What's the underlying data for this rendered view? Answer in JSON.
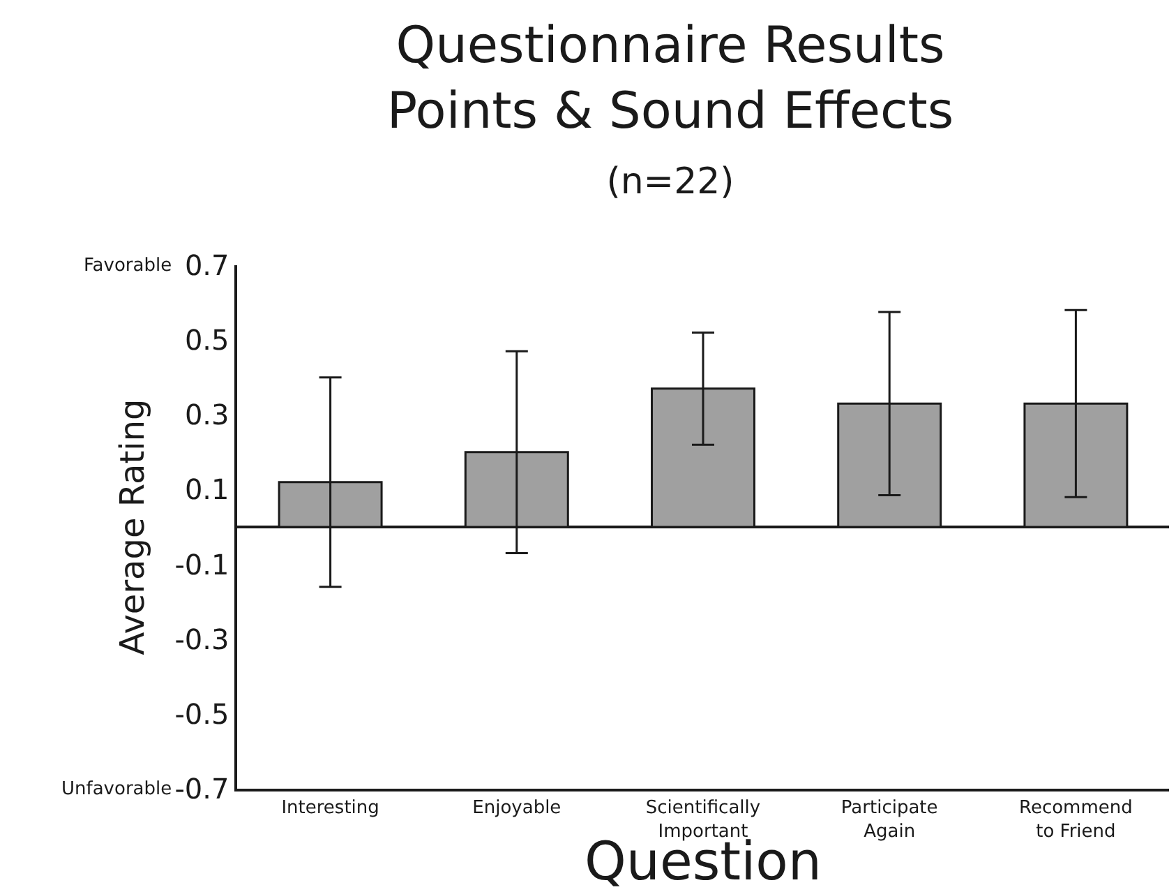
{
  "chart_data": {
    "type": "bar",
    "title": "Questionnaire Results\nPoints & Sound Effects",
    "subtitle": "(n=22)",
    "xlabel": "Question",
    "ylabel": "Average Rating",
    "categories": [
      "Interesting",
      "Enjoyable",
      "Scientifically\nImportant",
      "Participate\nAgain",
      "Recommend\nto Friend"
    ],
    "values": [
      0.12,
      0.2,
      0.37,
      0.33,
      0.33
    ],
    "errors": [
      0.28,
      0.27,
      0.15,
      0.245,
      0.25
    ],
    "color": "#a0a0a0",
    "ylim": [
      -0.7,
      0.7
    ],
    "yticks": [
      -0.7,
      -0.5,
      -0.3,
      -0.1,
      0.1,
      0.3,
      0.5,
      0.7
    ],
    "annotations": [
      "Favorable",
      "Unfavorable"
    ]
  }
}
